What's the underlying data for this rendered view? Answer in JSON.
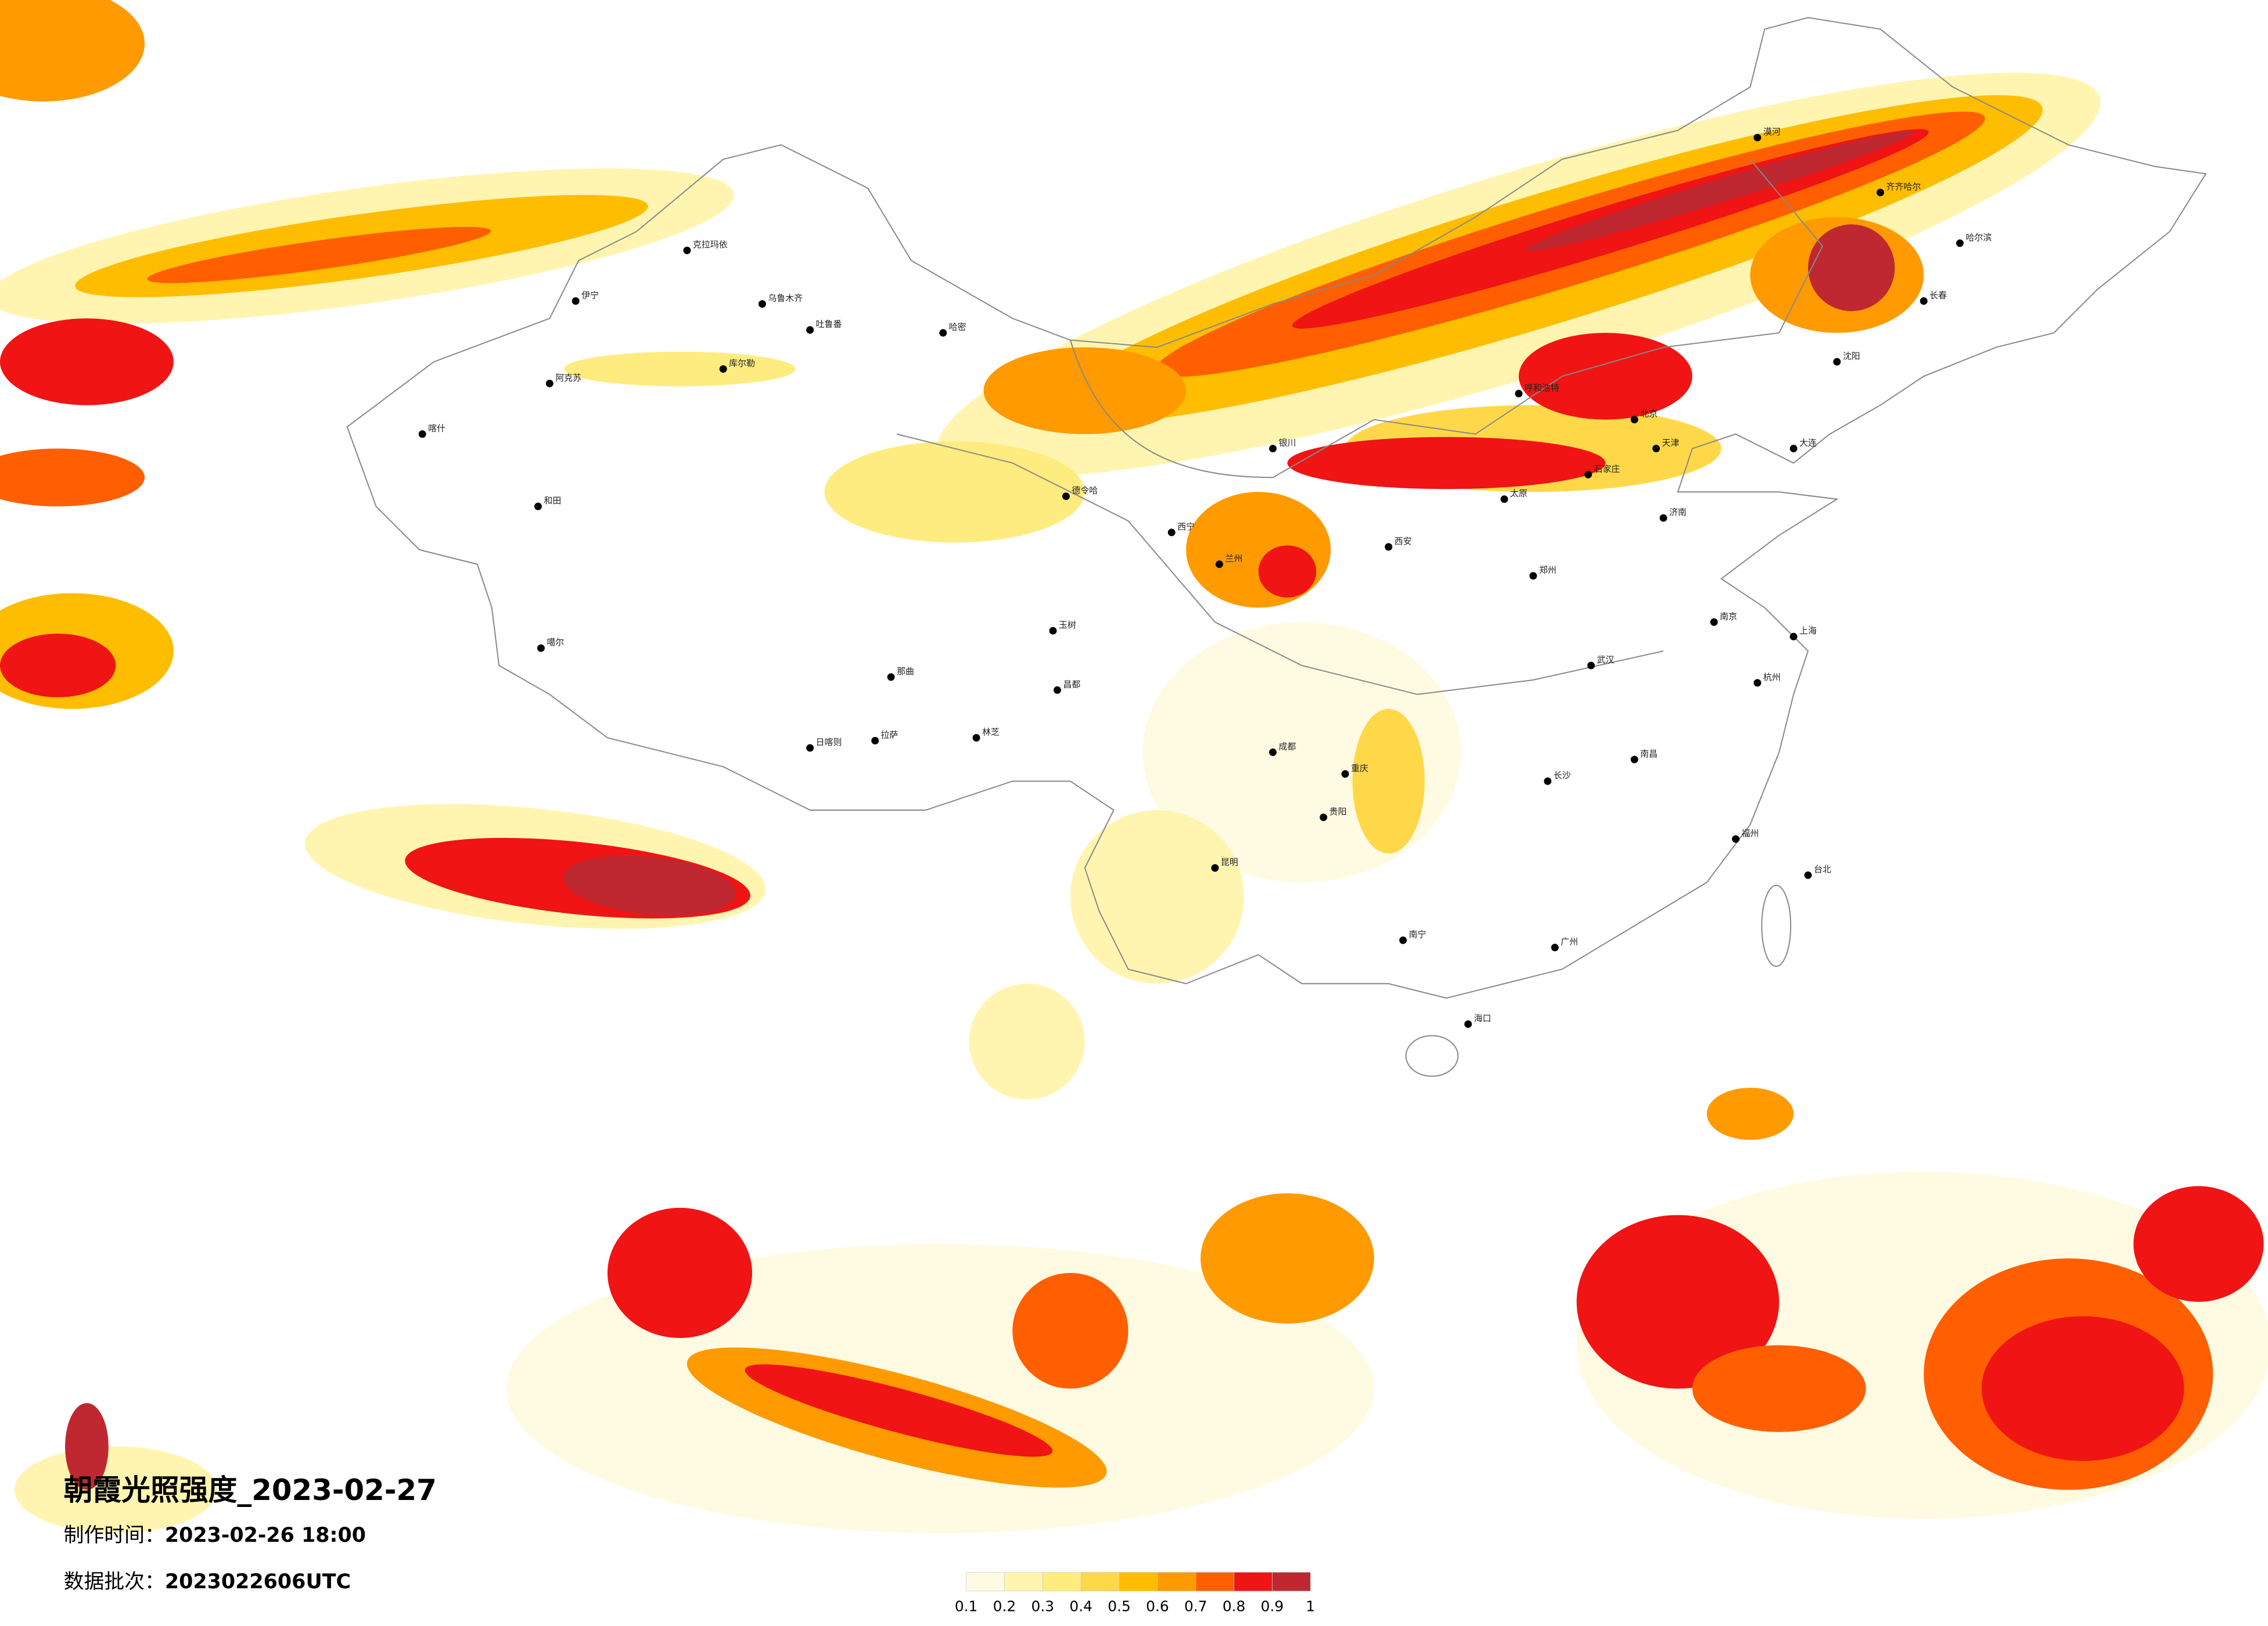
{
  "header": {
    "title": "朝霞光照强度_2023-02-27",
    "made_label": "制作时间：",
    "made_value": "2023-02-26 18:00",
    "batch_label": "数据批次：",
    "batch_value": "2023022606UTC"
  },
  "legend": {
    "ticks": [
      0.1,
      0.2,
      0.3,
      0.4,
      0.5,
      0.6,
      0.7,
      0.8,
      0.9,
      1
    ],
    "colors": [
      "#fffbe3",
      "#fff5b0",
      "#ffec80",
      "#ffd84a",
      "#ffbd00",
      "#ff9a00",
      "#ff5f00",
      "#f01414",
      "#bf2830"
    ]
  },
  "cities": [
    "克拉玛依",
    "伊宁",
    "阿克苏",
    "喀什",
    "和田",
    "乌鲁木齐",
    "哈密",
    "库尔勒",
    "吐鲁番",
    "德令哈",
    "噶尔",
    "日喀则",
    "拉萨",
    "林芝",
    "那曲",
    "玉树",
    "昌都",
    "西宁",
    "兰州",
    "银川",
    "呼和浩特",
    "北京",
    "天津",
    "石家庄",
    "太原",
    "济南",
    "郑州",
    "西安",
    "成都",
    "重庆",
    "武汉",
    "南京",
    "上海",
    "杭州",
    "长沙",
    "南昌",
    "福州",
    "广州",
    "南宁",
    "昆明",
    "贵阳",
    "海口",
    "台北",
    "哈尔滨",
    "长春",
    "沈阳",
    "大连",
    "齐齐哈尔",
    "漠河"
  ]
}
